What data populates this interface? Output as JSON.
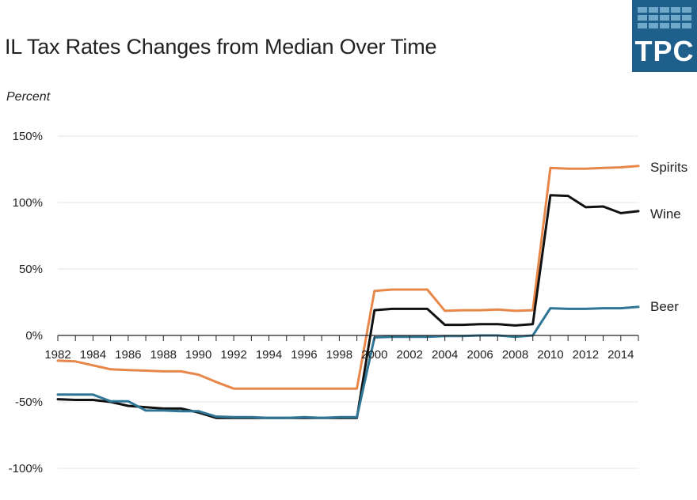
{
  "header": {
    "title": "IL Tax Rates Changes from Median Over Time",
    "logo_text": "TPC"
  },
  "chart_data": {
    "type": "line",
    "title": "IL Tax Rates Changes from Median Over Time",
    "ylabel": "Percent",
    "xlabel": "",
    "xlim": [
      1982,
      2015
    ],
    "ylim": [
      -100,
      150
    ],
    "x_ticks": [
      1982,
      1984,
      1986,
      1988,
      1990,
      1992,
      1994,
      1996,
      1998,
      2000,
      2002,
      2004,
      2006,
      2008,
      2010,
      2012,
      2014
    ],
    "x_tick_labels": [
      "1982",
      "1984",
      "1986",
      "1988",
      "1990",
      "1992",
      "1994",
      "1996",
      "1998",
      "2000",
      "2002",
      "2004",
      "2006",
      "2008",
      "2010",
      "2012",
      "2014"
    ],
    "y_ticks": [
      -100,
      -50,
      0,
      50,
      100,
      150
    ],
    "y_tick_labels": [
      "-100%",
      "-50%",
      "0%",
      "50%",
      "100%",
      "150%"
    ],
    "grid": "horizontal",
    "legend": "inline-right",
    "x": [
      1982,
      1983,
      1984,
      1985,
      1986,
      1987,
      1988,
      1989,
      1990,
      1991,
      1992,
      1993,
      1994,
      1995,
      1996,
      1997,
      1998,
      1999,
      2000,
      2001,
      2002,
      2003,
      2004,
      2005,
      2006,
      2007,
      2008,
      2009,
      2010,
      2011,
      2012,
      2013,
      2014,
      2015
    ],
    "series": [
      {
        "name": "Spirits",
        "color": "#e8874a",
        "values": [
          -19,
          -19.5,
          -22.5,
          -25.5,
          -26,
          -26.5,
          -27,
          -27,
          -29.5,
          -35,
          -40,
          -40,
          -40,
          -40,
          -40,
          -40,
          -40,
          -40,
          33.5,
          34.5,
          34.5,
          34.5,
          18.5,
          19,
          19,
          19.5,
          18.5,
          19,
          126,
          125.5,
          125.5,
          126,
          126.5,
          127.5
        ]
      },
      {
        "name": "Wine",
        "color": "#111111",
        "values": [
          -48,
          -48.5,
          -48.5,
          -50,
          -53,
          -54,
          -55,
          -55,
          -58,
          -62,
          -62,
          -62,
          -62,
          -62,
          -62,
          -62,
          -62,
          -62,
          19,
          20,
          20,
          20,
          8,
          8,
          8.5,
          8.5,
          7.5,
          8.5,
          105.5,
          105,
          96.5,
          97,
          92,
          93.5
        ]
      },
      {
        "name": "Beer",
        "color": "#2e7596",
        "values": [
          -44.5,
          -44.5,
          -44.5,
          -49.5,
          -49.5,
          -56.5,
          -56.5,
          -57,
          -57,
          -61,
          -61.5,
          -61.5,
          -62,
          -62,
          -61.5,
          -62,
          -61.5,
          -61.5,
          -1.5,
          -1,
          -1,
          -1,
          -0.5,
          -0.5,
          0,
          0,
          -1,
          0,
          20.5,
          20,
          20,
          20.5,
          20.5,
          21.5
        ]
      }
    ]
  }
}
